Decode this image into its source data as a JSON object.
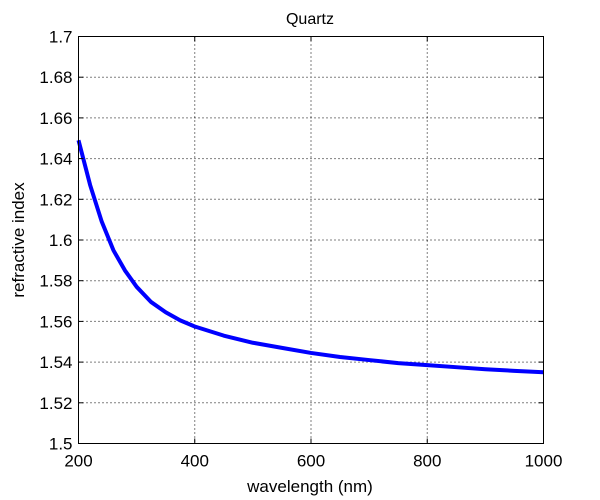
{
  "chart_data": {
    "type": "line",
    "title": "Quartz",
    "xlabel": "wavelength (nm)",
    "ylabel": "refractive index",
    "xlim": [
      200,
      1000
    ],
    "ylim": [
      1.5,
      1.7
    ],
    "grid": true,
    "x_ticks": [
      "200",
      "400",
      "600",
      "800",
      "1000"
    ],
    "y_ticks": [
      "1.5",
      "1.52",
      "1.54",
      "1.56",
      "1.58",
      "1.6",
      "1.62",
      "1.64",
      "1.66",
      "1.68",
      "1.7"
    ],
    "series": [
      {
        "color": "#0000ff",
        "x": [
          200,
          220,
          240,
          260,
          280,
          300,
          325,
          350,
          375,
          400,
          450,
          500,
          550,
          600,
          650,
          700,
          750,
          800,
          850,
          900,
          950,
          1000
        ],
        "y": [
          1.649,
          1.627,
          1.609,
          1.595,
          1.585,
          1.577,
          1.5695,
          1.5645,
          1.5605,
          1.5575,
          1.553,
          1.5495,
          1.547,
          1.5445,
          1.5425,
          1.541,
          1.5395,
          1.5385,
          1.5375,
          1.5365,
          1.5357,
          1.535
        ]
      }
    ]
  }
}
